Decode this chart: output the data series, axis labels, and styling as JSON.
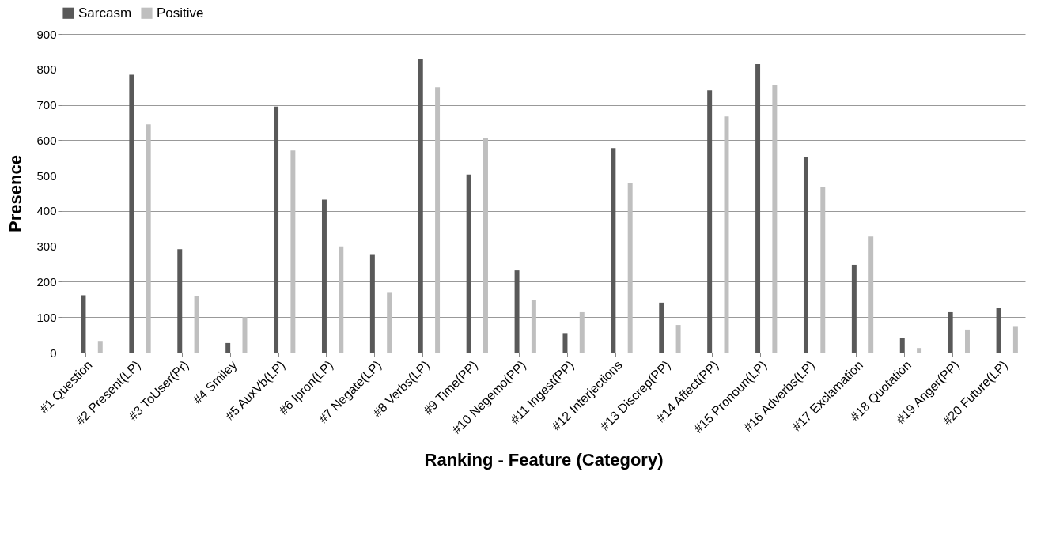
{
  "chart_data": {
    "type": "bar",
    "xlabel": "Ranking - Feature (Category)",
    "ylabel": "Presence",
    "categories": [
      "#1 Question",
      "#2 Present(LP)",
      "#3 ToUser(Pr)",
      "#4 Smiley",
      "#5 AuxVb(LP)",
      "#6 Ipron(LP)",
      "#7 Negate(LP)",
      "#8 Verbs(LP)",
      "#9 Time(PP)",
      "#10 Negemo(PP)",
      "#11 Ingest(PP)",
      "#12 Interjections",
      "#13 Discrep(PP)",
      "#14 Affect(PP)",
      "#15 Pronoun(LP)",
      "#16 Adverbs(LP)",
      "#17 Exclamation",
      "#18 Quotation",
      "#19 Anger(PP)",
      "#20 Future(LP)"
    ],
    "series": [
      {
        "name": "Sarcasm",
        "color": "#595959",
        "values": [
          162,
          785,
          292,
          27,
          695,
          432,
          278,
          830,
          503,
          232,
          55,
          578,
          141,
          741,
          815,
          552,
          248,
          42,
          114,
          127
        ]
      },
      {
        "name": "Positive",
        "color": "#bfbfbf",
        "values": [
          33,
          645,
          159,
          100,
          571,
          300,
          171,
          750,
          607,
          148,
          114,
          480,
          78,
          667,
          755,
          468,
          328,
          13,
          65,
          75
        ]
      }
    ],
    "ylim": [
      0,
      900
    ],
    "yticks": [
      0,
      100,
      200,
      300,
      400,
      500,
      600,
      700,
      800,
      900
    ],
    "grid": "y",
    "legend": "top"
  }
}
